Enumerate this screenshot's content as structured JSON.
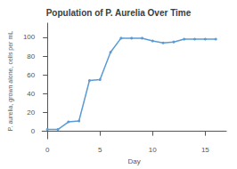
{
  "chart_data": {
    "type": "line",
    "title": "Population of P. Aurelia Over Time",
    "xlabel": "Day",
    "ylabel": "P. aurelia, grown alone, cells per mL",
    "x": [
      0,
      1,
      2,
      3,
      4,
      5,
      6,
      7,
      8,
      9,
      10,
      11,
      12,
      13,
      14,
      15,
      16
    ],
    "values": [
      2,
      2,
      10,
      11,
      54,
      55,
      84,
      99,
      99,
      99,
      96,
      94,
      95,
      98,
      98,
      98,
      98
    ],
    "color": "#5b9bd5",
    "marker": "circle",
    "xlim": [
      -0.5,
      17
    ],
    "ylim": [
      -8,
      115
    ],
    "xticks": [
      0,
      5,
      10,
      15
    ],
    "yticks": [
      0,
      20,
      40,
      60,
      80,
      100
    ],
    "grid": false
  }
}
